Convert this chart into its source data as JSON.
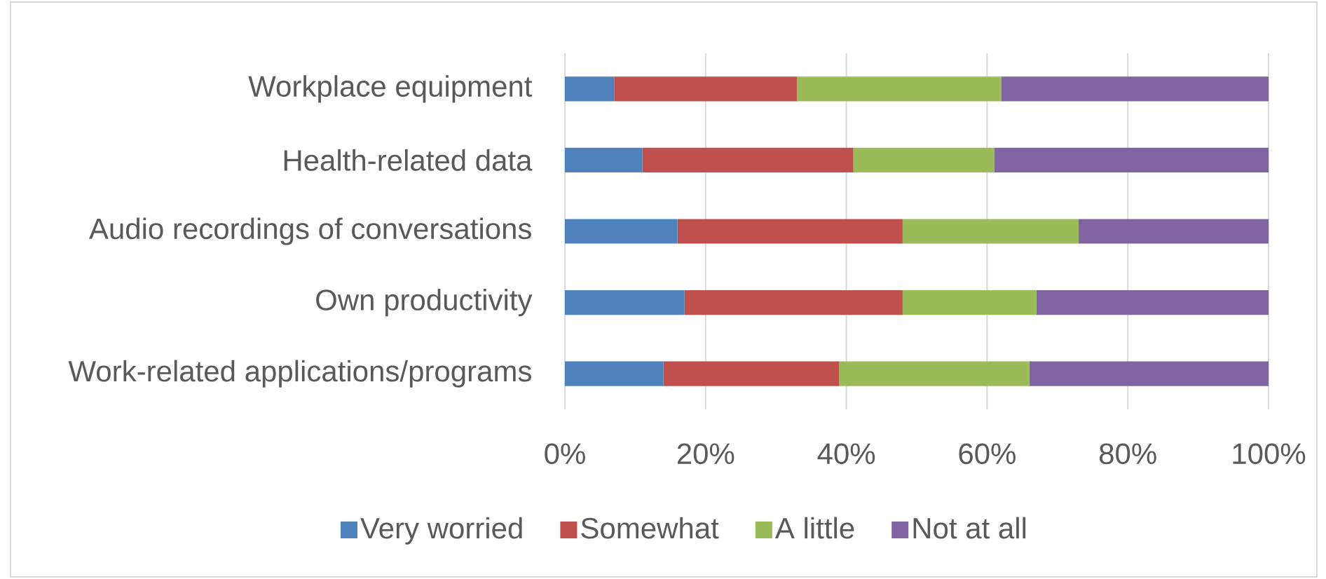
{
  "chart_data": {
    "type": "bar",
    "orientation": "horizontal",
    "stacked": true,
    "categories": [
      "Workplace equipment",
      "Health-related data",
      "Audio recordings of conversations",
      "Own productivity",
      "Work-related applications/programs"
    ],
    "series": [
      {
        "name": "Very worried",
        "color": "#4f81bd",
        "values": [
          7,
          11,
          16,
          17,
          14
        ]
      },
      {
        "name": "Somewhat",
        "color": "#c0504d",
        "values": [
          26,
          30,
          32,
          31,
          25
        ]
      },
      {
        "name": "A little",
        "color": "#9bbb59",
        "values": [
          29,
          20,
          25,
          19,
          27
        ]
      },
      {
        "name": "Not at all",
        "color": "#8064a2",
        "values": [
          38,
          39,
          27,
          33,
          34
        ]
      }
    ],
    "xlim": [
      0,
      100
    ],
    "xticks": [
      {
        "value": 0,
        "label": "0%"
      },
      {
        "value": 20,
        "label": "20%"
      },
      {
        "value": 40,
        "label": "40%"
      },
      {
        "value": 60,
        "label": "60%"
      },
      {
        "value": 80,
        "label": "80%"
      },
      {
        "value": 100,
        "label": "100%"
      }
    ],
    "grid": "x",
    "legend": "bottom"
  }
}
